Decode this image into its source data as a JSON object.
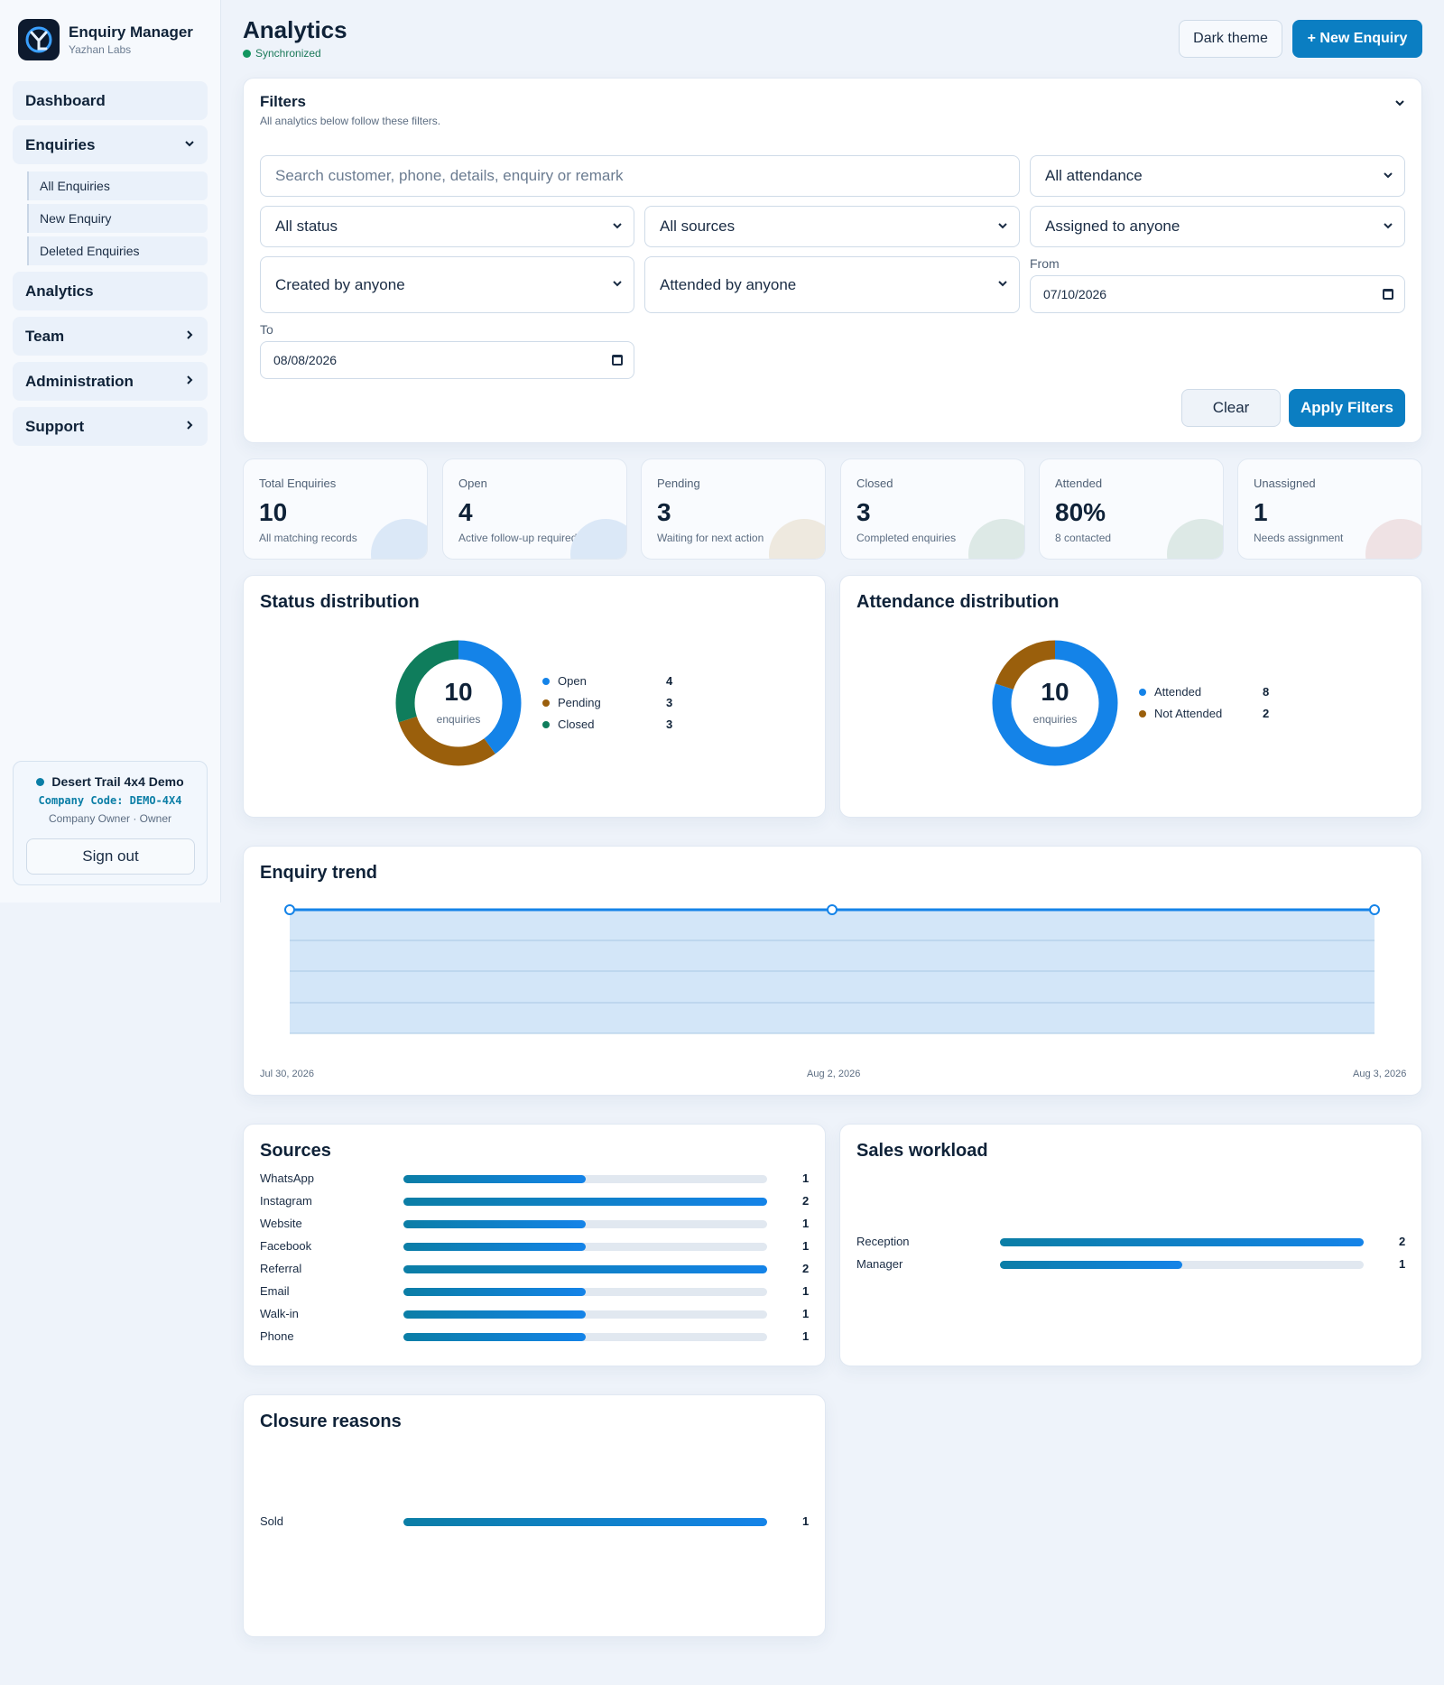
{
  "brand": {
    "title": "Enquiry Manager",
    "subtitle": "Yazhan Labs"
  },
  "nav": {
    "dashboard": "Dashboard",
    "enquiries": "Enquiries",
    "sub_items": [
      "All Enquiries",
      "New Enquiry",
      "Deleted Enquiries"
    ],
    "analytics": "Analytics",
    "team": "Team",
    "administration": "Administration",
    "support": "Support"
  },
  "company": {
    "name": "Desert Trail 4x4 Demo",
    "code": "Company Code: DEMO-4X4",
    "role": "Company Owner · Owner",
    "signout": "Sign out"
  },
  "header": {
    "title": "Analytics",
    "status": "Synchronized",
    "theme_button": "Dark theme",
    "new_button": "+ New Enquiry"
  },
  "filters": {
    "title": "Filters",
    "subtitle": "All analytics below follow these filters.",
    "search_placeholder": "Search customer, phone, details, enquiry or remark",
    "attendance": "All attendance",
    "status": "All status",
    "sources": "All sources",
    "assigned": "Assigned to anyone",
    "created": "Created by anyone",
    "attended": "Attended by anyone",
    "from_label": "From",
    "from_value": "07/10/2026",
    "to_label": "To",
    "to_value": "08/08/2026",
    "clear": "Clear",
    "apply": "Apply Filters"
  },
  "stats": [
    {
      "label": "Total Enquiries",
      "value": "10",
      "sub": "All matching records",
      "color": "#dbe8f7"
    },
    {
      "label": "Open",
      "value": "4",
      "sub": "Active follow-up required",
      "color": "#dbe8f7"
    },
    {
      "label": "Pending",
      "value": "3",
      "sub": "Waiting for next action",
      "color": "#eee9df"
    },
    {
      "label": "Closed",
      "value": "3",
      "sub": "Completed enquiries",
      "color": "#dde9e6"
    },
    {
      "label": "Attended",
      "value": "80%",
      "sub": "8 contacted",
      "color": "#dde9e6"
    },
    {
      "label": "Unassigned",
      "value": "1",
      "sub": "Needs assignment",
      "color": "#efe2e4"
    }
  ],
  "status_chart": {
    "title": "Status distribution",
    "center_value": "10",
    "center_label": "enquiries",
    "items": [
      {
        "name": "Open",
        "value": 4,
        "color": "#1483e8"
      },
      {
        "name": "Pending",
        "value": 3,
        "color": "#9a5f0c"
      },
      {
        "name": "Closed",
        "value": 3,
        "color": "#0f7d5c"
      }
    ]
  },
  "attendance_chart": {
    "title": "Attendance distribution",
    "center_value": "10",
    "center_label": "enquiries",
    "items": [
      {
        "name": "Attended",
        "value": 8,
        "color": "#1483e8"
      },
      {
        "name": "Not Attended",
        "value": 2,
        "color": "#9a5f0c"
      }
    ]
  },
  "trend": {
    "title": "Enquiry trend",
    "x_labels": [
      "Jul 30, 2026",
      "Aug 2, 2026",
      "Aug 3, 2026"
    ]
  },
  "sources": {
    "title": "Sources",
    "max": 2,
    "items": [
      {
        "name": "WhatsApp",
        "value": 1
      },
      {
        "name": "Instagram",
        "value": 2
      },
      {
        "name": "Website",
        "value": 1
      },
      {
        "name": "Facebook",
        "value": 1
      },
      {
        "name": "Referral",
        "value": 2
      },
      {
        "name": "Email",
        "value": 1
      },
      {
        "name": "Walk-in",
        "value": 1
      },
      {
        "name": "Phone",
        "value": 1
      }
    ]
  },
  "workload": {
    "title": "Sales workload",
    "max": 2,
    "items": [
      {
        "name": "Reception",
        "value": 2
      },
      {
        "name": "Manager",
        "value": 1
      }
    ]
  },
  "closure": {
    "title": "Closure reasons",
    "max": 1,
    "items": [
      {
        "name": "Sold",
        "value": 1
      }
    ]
  }
}
